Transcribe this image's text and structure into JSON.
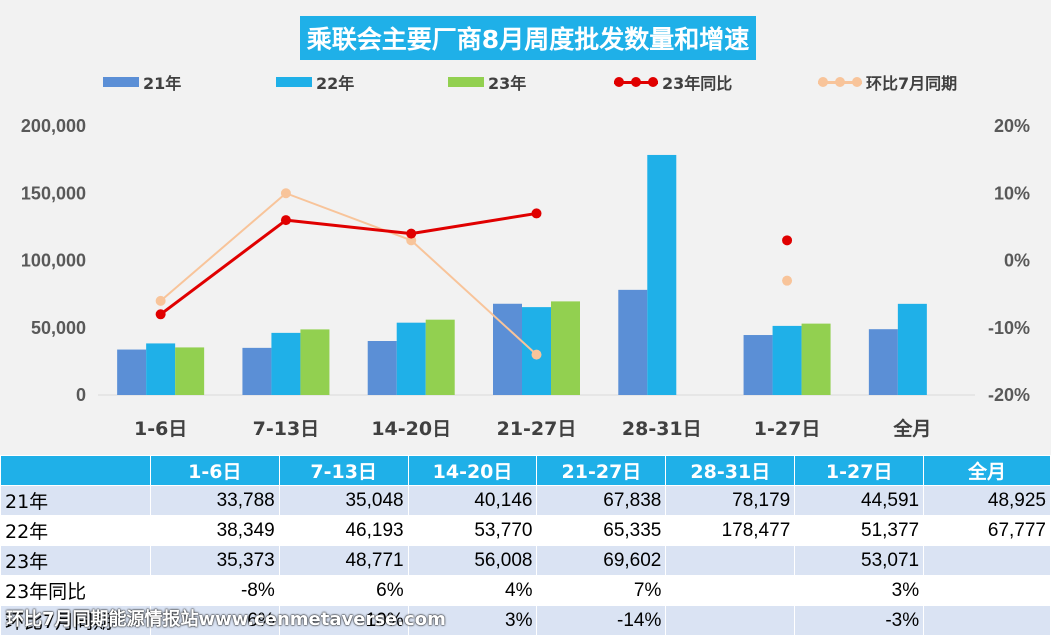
{
  "title": "乘联会主要厂商8月周度批发数量和增速",
  "colors": {
    "s21": "#5b8fd6",
    "s22": "#1fb0e8",
    "s23": "#92d050",
    "yoy": "#e00000",
    "mom": "#f8c49a",
    "header": "#1fb0e8"
  },
  "legend": {
    "s21": "21年",
    "s22": "22年",
    "s23": "23年",
    "yoy": "23年同比",
    "mom": "环比7月同期"
  },
  "chart_data": {
    "type": "bar",
    "categories": [
      "1-6日",
      "7-13日",
      "14-20日",
      "21-27日",
      "28-31日",
      "1-27日",
      "全月"
    ],
    "series": [
      {
        "name": "21年",
        "values": [
          33788,
          35048,
          40146,
          67838,
          78179,
          44591,
          48925
        ]
      },
      {
        "name": "22年",
        "values": [
          38349,
          46193,
          53770,
          65335,
          178477,
          51377,
          67777
        ]
      },
      {
        "name": "23年",
        "values": [
          35373,
          48771,
          56008,
          69602,
          null,
          53071,
          null
        ]
      }
    ],
    "line_series": [
      {
        "name": "23年同比",
        "axis": "right",
        "values": [
          -8,
          6,
          4,
          7,
          null,
          3,
          null
        ],
        "unit": "%"
      },
      {
        "name": "环比7月同期",
        "axis": "right",
        "values": [
          -6,
          10,
          3,
          -14,
          null,
          -3,
          null
        ],
        "unit": "%"
      }
    ],
    "ylim": [
      0,
      200000
    ],
    "yticks": [
      "0",
      "50,000",
      "100,000",
      "150,000",
      "200,000"
    ],
    "y2lim": [
      -20,
      20
    ],
    "y2ticks": [
      "-20%",
      "-10%",
      "0%",
      "10%",
      "20%"
    ],
    "legend_position": "top"
  },
  "table": {
    "headers": [
      "",
      "1-6日",
      "7-13日",
      "14-20日",
      "21-27日",
      "28-31日",
      "1-27日",
      "全月"
    ],
    "rows": [
      {
        "label": "21年",
        "cells": [
          "33,788",
          "35,048",
          "40,146",
          "67,838",
          "78,179",
          "44,591",
          "48,925"
        ]
      },
      {
        "label": "22年",
        "cells": [
          "38,349",
          "46,193",
          "53,770",
          "65,335",
          "178,477",
          "51,377",
          "67,777"
        ]
      },
      {
        "label": "23年",
        "cells": [
          "35,373",
          "48,771",
          "56,008",
          "69,602",
          "",
          "53,071",
          ""
        ]
      },
      {
        "label": "23年同比",
        "cells": [
          "-8%",
          "6%",
          "4%",
          "7%",
          "",
          "3%",
          ""
        ]
      },
      {
        "label": "环比7月同期",
        "cells": [
          "-6%",
          "10%",
          "3%",
          "-14%",
          "",
          "-3%",
          ""
        ]
      }
    ]
  },
  "watermark": "环比7月同期能源情报站www.cenmetaverse.com"
}
